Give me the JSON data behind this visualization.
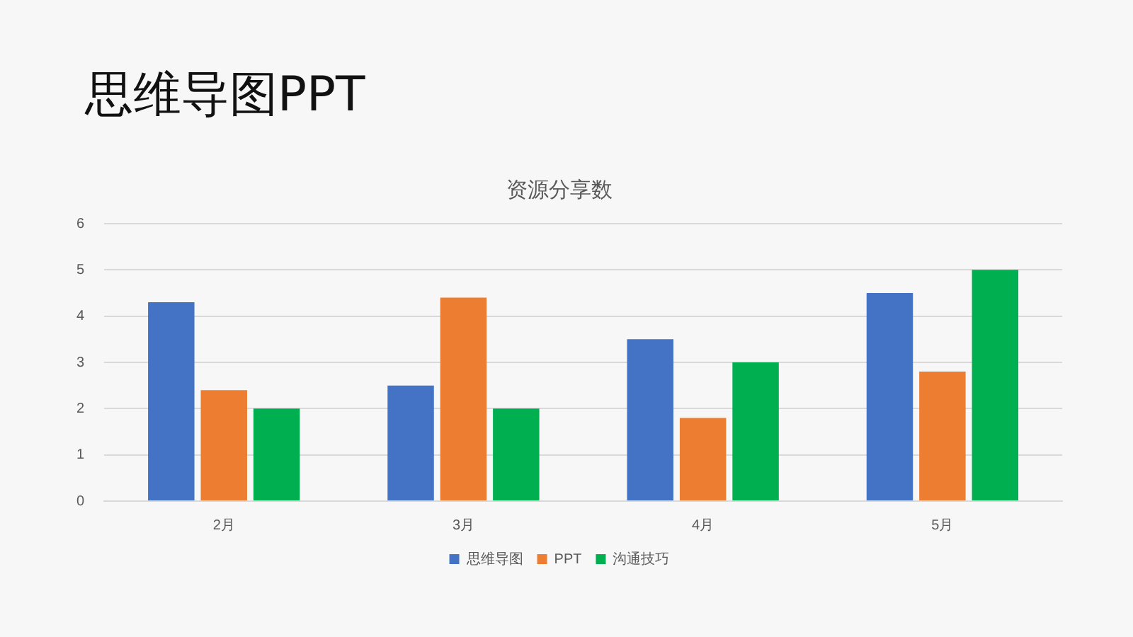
{
  "chart_data": {
    "type": "bar",
    "title": "资源分享数",
    "subtitle": "思维导图PPT",
    "categories": [
      "2月",
      "3月",
      "4月",
      "5月"
    ],
    "series": [
      {
        "name": "思维导图",
        "color": "#4472c4",
        "values": [
          4.3,
          2.5,
          3.5,
          4.5
        ]
      },
      {
        "name": "PPT",
        "color": "#ed7d31",
        "values": [
          2.4,
          4.4,
          1.8,
          2.8
        ]
      },
      {
        "name": "沟通技巧",
        "color": "#00b050",
        "values": [
          2,
          2,
          3,
          5
        ]
      }
    ],
    "ylim": [
      0,
      6
    ],
    "yticks": [
      0,
      1,
      2,
      3,
      4,
      5,
      6
    ],
    "grid": "y",
    "legend": "bottom"
  }
}
